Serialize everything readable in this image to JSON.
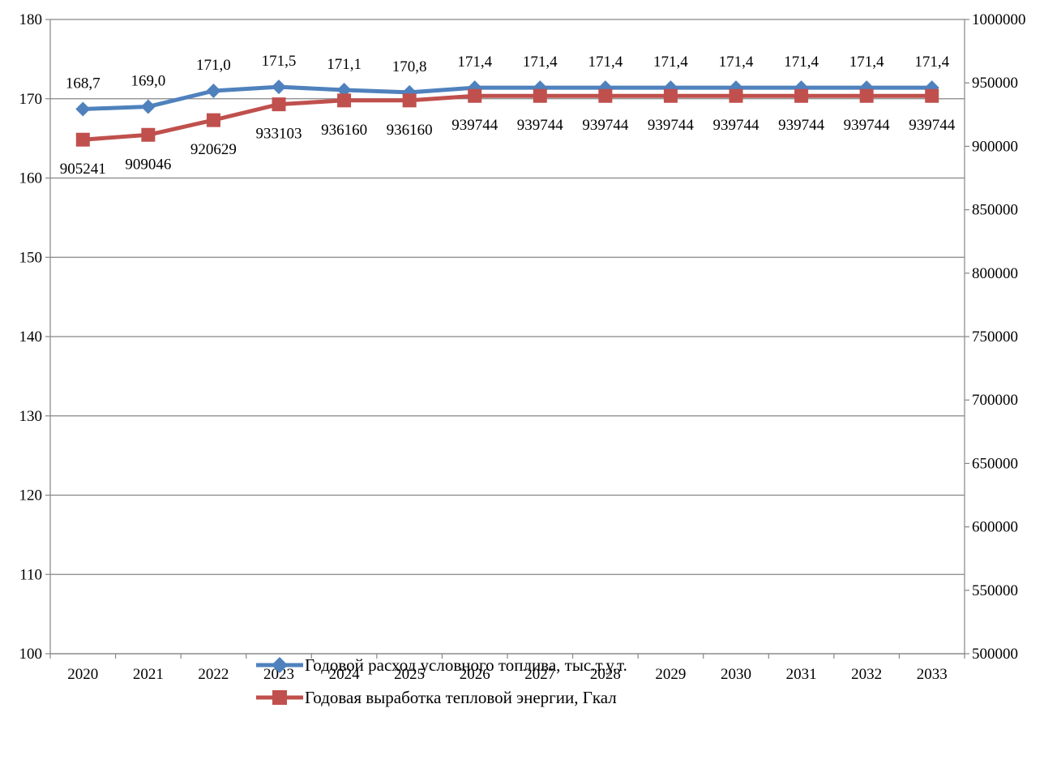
{
  "chart_data": {
    "type": "line",
    "title": "",
    "x": [
      "2020",
      "2021",
      "2022",
      "2023",
      "2024",
      "2025",
      "2026",
      "2027",
      "2028",
      "2029",
      "2030",
      "2031",
      "2032",
      "2033"
    ],
    "y_left_ticks": [
      "100",
      "110",
      "120",
      "130",
      "140",
      "150",
      "160",
      "170",
      "180"
    ],
    "y_right_ticks": [
      "500000",
      "550000",
      "600000",
      "650000",
      "700000",
      "750000",
      "800000",
      "850000",
      "900000",
      "950000",
      "1000000"
    ],
    "ylim_left": [
      100,
      180
    ],
    "ylim_right": [
      500000,
      1000000
    ],
    "grid": true,
    "legend_position": "bottom",
    "series": [
      {
        "name": "Годовой расход условного топлива, тыс.т.у.т.",
        "axis": "left",
        "color": "#4F81BD",
        "marker": "diamond",
        "values": [
          168.7,
          169.0,
          171.0,
          171.5,
          171.1,
          170.8,
          171.4,
          171.4,
          171.4,
          171.4,
          171.4,
          171.4,
          171.4,
          171.4
        ],
        "labels": [
          "168,7",
          "169,0",
          "171,0",
          "171,5",
          "171,1",
          "170,8",
          "171,4",
          "171,4",
          "171,4",
          "171,4",
          "171,4",
          "171,4",
          "171,4",
          "171,4"
        ]
      },
      {
        "name": "Годовая выработка тепловой энергии, Гкал",
        "axis": "right",
        "color": "#C0504D",
        "marker": "square",
        "values": [
          905241,
          909046,
          920629,
          933103,
          936160,
          936160,
          939744,
          939744,
          939744,
          939744,
          939744,
          939744,
          939744,
          939744
        ],
        "labels": [
          "905241",
          "909046",
          "920629",
          "933103",
          "936160",
          "936160",
          "939744",
          "939744",
          "939744",
          "939744",
          "939744",
          "939744",
          "939744",
          "939744"
        ]
      }
    ]
  }
}
